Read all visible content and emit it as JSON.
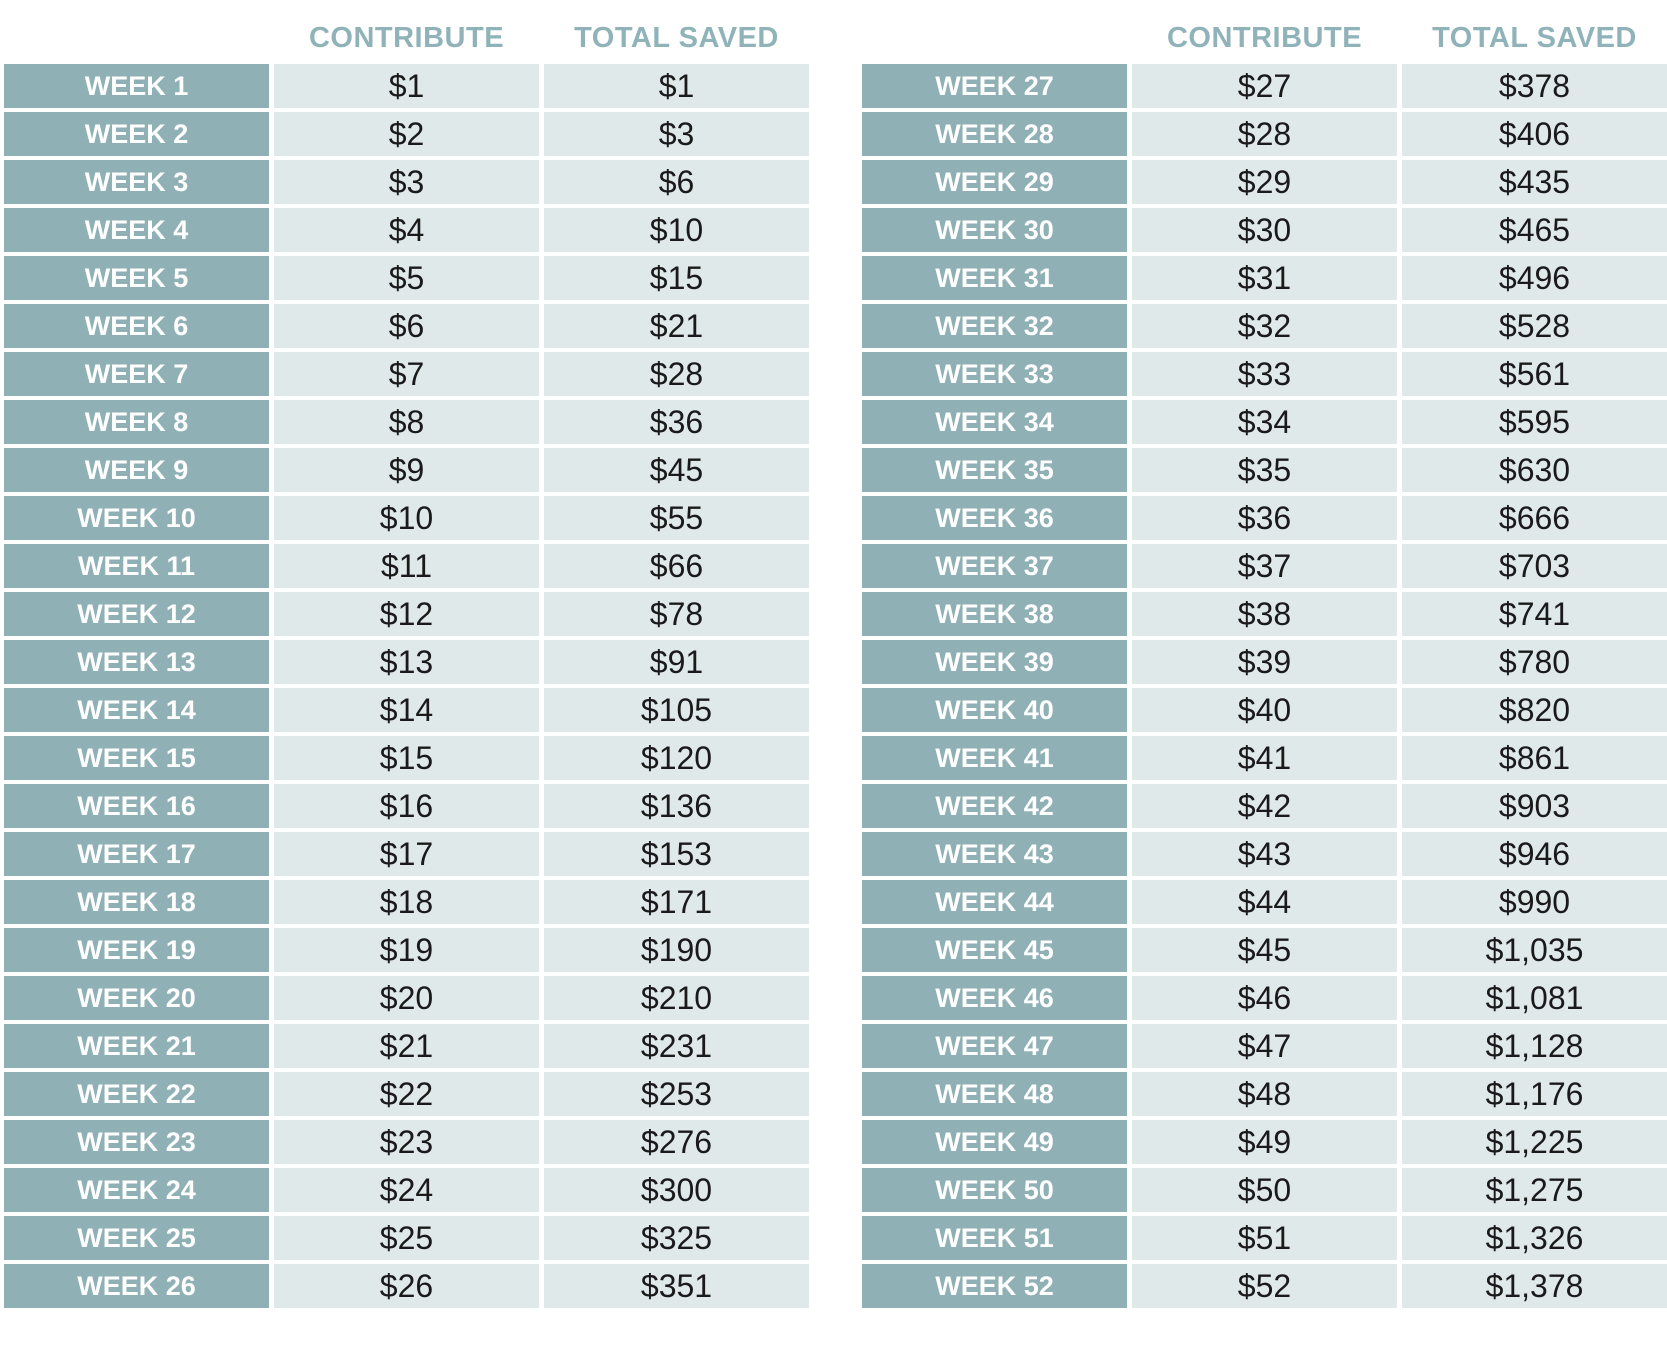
{
  "tables": [
    {
      "headers": [
        "CONTRIBUTE",
        "TOTAL SAVED"
      ],
      "rows": [
        [
          "WEEK 1",
          "$1",
          "$1"
        ],
        [
          "WEEK 2",
          "$2",
          "$3"
        ],
        [
          "WEEK 3",
          "$3",
          "$6"
        ],
        [
          "WEEK 4",
          "$4",
          "$10"
        ],
        [
          "WEEK 5",
          "$5",
          "$15"
        ],
        [
          "WEEK 6",
          "$6",
          "$21"
        ],
        [
          "WEEK 7",
          "$7",
          "$28"
        ],
        [
          "WEEK 8",
          "$8",
          "$36"
        ],
        [
          "WEEK 9",
          "$9",
          "$45"
        ],
        [
          "WEEK 10",
          "$10",
          "$55"
        ],
        [
          "WEEK 11",
          "$11",
          "$66"
        ],
        [
          "WEEK 12",
          "$12",
          "$78"
        ],
        [
          "WEEK 13",
          "$13",
          "$91"
        ],
        [
          "WEEK 14",
          "$14",
          "$105"
        ],
        [
          "WEEK 15",
          "$15",
          "$120"
        ],
        [
          "WEEK 16",
          "$16",
          "$136"
        ],
        [
          "WEEK 17",
          "$17",
          "$153"
        ],
        [
          "WEEK 18",
          "$18",
          "$171"
        ],
        [
          "WEEK 19",
          "$19",
          "$190"
        ],
        [
          "WEEK 20",
          "$20",
          "$210"
        ],
        [
          "WEEK 21",
          "$21",
          "$231"
        ],
        [
          "WEEK 22",
          "$22",
          "$253"
        ],
        [
          "WEEK 23",
          "$23",
          "$276"
        ],
        [
          "WEEK 24",
          "$24",
          "$300"
        ],
        [
          "WEEK 25",
          "$25",
          "$325"
        ],
        [
          "WEEK 26",
          "$26",
          "$351"
        ]
      ]
    },
    {
      "headers": [
        "CONTRIBUTE",
        "TOTAL SAVED"
      ],
      "rows": [
        [
          "WEEK 27",
          "$27",
          "$378"
        ],
        [
          "WEEK 28",
          "$28",
          "$406"
        ],
        [
          "WEEK 29",
          "$29",
          "$435"
        ],
        [
          "WEEK 30",
          "$30",
          "$465"
        ],
        [
          "WEEK 31",
          "$31",
          "$496"
        ],
        [
          "WEEK 32",
          "$32",
          "$528"
        ],
        [
          "WEEK 33",
          "$33",
          "$561"
        ],
        [
          "WEEK 34",
          "$34",
          "$595"
        ],
        [
          "WEEK 35",
          "$35",
          "$630"
        ],
        [
          "WEEK 36",
          "$36",
          "$666"
        ],
        [
          "WEEK 37",
          "$37",
          "$703"
        ],
        [
          "WEEK 38",
          "$38",
          "$741"
        ],
        [
          "WEEK 39",
          "$39",
          "$780"
        ],
        [
          "WEEK 40",
          "$40",
          "$820"
        ],
        [
          "WEEK 41",
          "$41",
          "$861"
        ],
        [
          "WEEK 42",
          "$42",
          "$903"
        ],
        [
          "WEEK 43",
          "$43",
          "$946"
        ],
        [
          "WEEK 44",
          "$44",
          "$990"
        ],
        [
          "WEEK 45",
          "$45",
          "$1,035"
        ],
        [
          "WEEK 46",
          "$46",
          "$1,081"
        ],
        [
          "WEEK 47",
          "$47",
          "$1,128"
        ],
        [
          "WEEK 48",
          "$48",
          "$1,176"
        ],
        [
          "WEEK 49",
          "$49",
          "$1,225"
        ],
        [
          "WEEK 50",
          "$50",
          "$1,275"
        ],
        [
          "WEEK 51",
          "$51",
          "$1,326"
        ],
        [
          "WEEK 52",
          "$52",
          "$1,378"
        ]
      ]
    }
  ]
}
